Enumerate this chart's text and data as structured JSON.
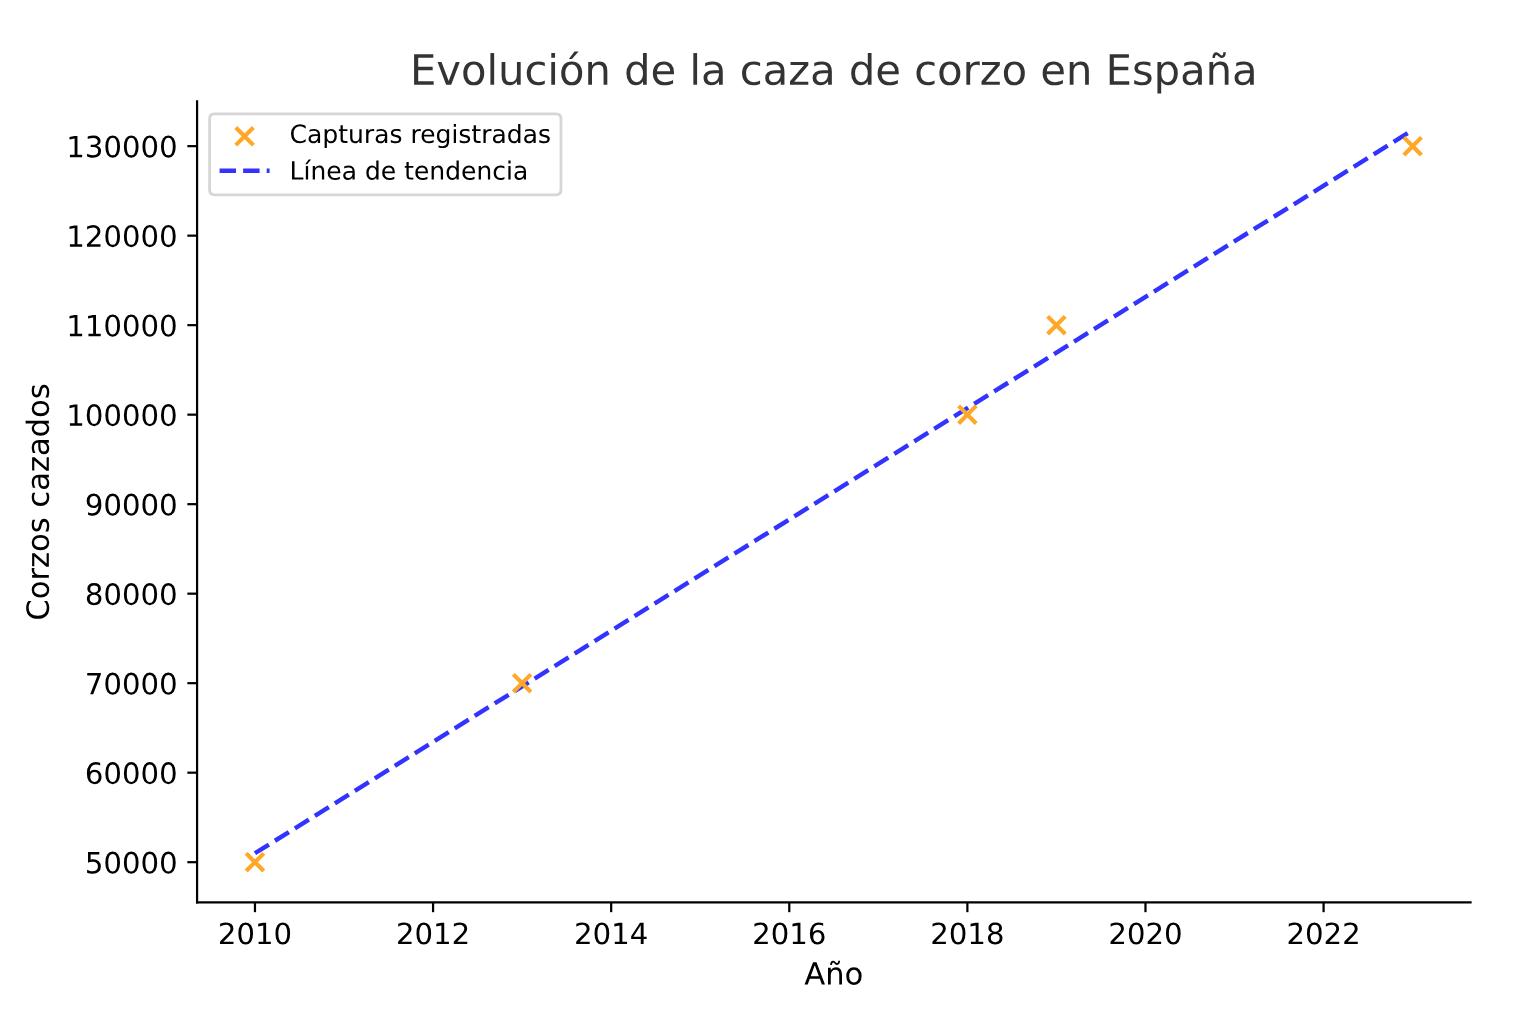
{
  "chart_data": {
    "type": "scatter",
    "title": "Evolución de la caza de corzo en España",
    "xlabel": "Año",
    "ylabel": "Corzos cazados",
    "series": [
      {
        "name": "Capturas registradas",
        "color": "#ffa726",
        "marker": "cross",
        "x": [
          2010,
          2013,
          2018,
          2019,
          2023
        ],
        "values": [
          50000,
          70000,
          100000,
          110000,
          130000
        ]
      },
      {
        "name": "Línea de tendencia",
        "type": "line",
        "color": "#3333ff",
        "line_style": "dashed",
        "marker": "none",
        "x": [
          2010,
          2023
        ],
        "values": [
          51000,
          131800
        ]
      }
    ],
    "xlim": [
      2009.35,
      2023.65
    ],
    "ylim": [
      45500,
      135000
    ],
    "xticks": [
      2010,
      2012,
      2014,
      2016,
      2018,
      2020,
      2022
    ],
    "yticks": [
      50000,
      60000,
      70000,
      80000,
      90000,
      100000,
      110000,
      120000,
      130000
    ],
    "grid": false,
    "legend": "top left"
  }
}
